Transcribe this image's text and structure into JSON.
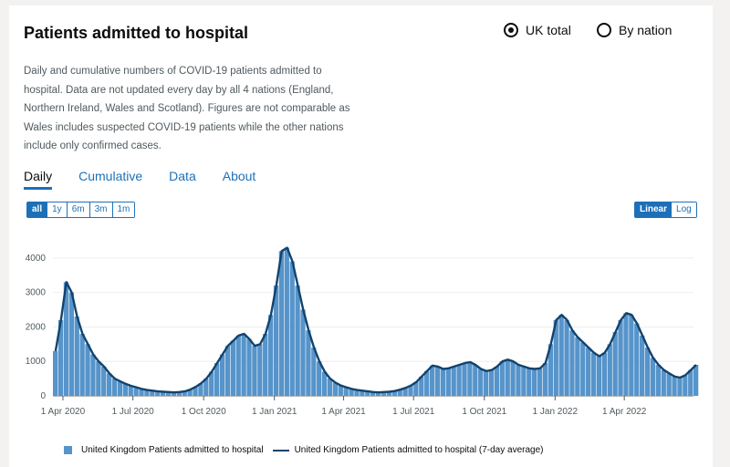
{
  "title": "Patients admitted to hospital",
  "options": [
    {
      "label": "UK total",
      "selected": true
    },
    {
      "label": "By nation",
      "selected": false
    }
  ],
  "description_lines": [
    "Daily and cumulative numbers of COVID-19 patients admitted to",
    "hospital. Data are not updated every day by all 4 nations (England,",
    "Northern Ireland, Wales and Scotland). Figures are not comparable as",
    "Wales includes suspected COVID-19 patients while the other nations",
    "include only confirmed cases."
  ],
  "tabs": [
    {
      "label": "Daily",
      "active": true
    },
    {
      "label": "Cumulative",
      "active": false
    },
    {
      "label": "Data",
      "active": false
    },
    {
      "label": "About",
      "active": false
    }
  ],
  "range_buttons": [
    {
      "label": "all",
      "active": true
    },
    {
      "label": "1y",
      "active": false
    },
    {
      "label": "6m",
      "active": false
    },
    {
      "label": "3m",
      "active": false
    },
    {
      "label": "1m",
      "active": false
    }
  ],
  "scale_buttons": [
    {
      "label": "Linear",
      "active": true
    },
    {
      "label": "Log",
      "active": false
    }
  ],
  "colors": {
    "bar": "#5694ca",
    "line": "#12436d",
    "accent": "#1d70b8"
  },
  "chart_data": {
    "type": "bar",
    "ylim": [
      0,
      4500
    ],
    "yticks": [
      0,
      1000,
      2000,
      3000,
      4000
    ],
    "xlim": [
      "2020-03-19",
      "2022-06-30"
    ],
    "xticks": [
      {
        "date": "2020-04-01",
        "label": "1 Apr 2020"
      },
      {
        "date": "2020-07-01",
        "label": "1 Jul 2020"
      },
      {
        "date": "2020-10-01",
        "label": "1 Oct 2020"
      },
      {
        "date": "2021-01-01",
        "label": "1 Jan 2021"
      },
      {
        "date": "2021-04-01",
        "label": "1 Apr 2021"
      },
      {
        "date": "2021-07-01",
        "label": "1 Jul 2021"
      },
      {
        "date": "2021-10-01",
        "label": "1 Oct 2021"
      },
      {
        "date": "2022-01-01",
        "label": "1 Jan 2022"
      },
      {
        "date": "2022-04-01",
        "label": "1 Apr 2022"
      }
    ],
    "series": [
      {
        "name": "United Kingdom Patients admitted to hospital",
        "type": "bar"
      },
      {
        "name": "United Kingdom Patients admitted to hospital (7-day average)",
        "type": "line"
      }
    ],
    "daily_weekly": [
      {
        "date": "2020-03-19",
        "value": 1300
      },
      {
        "date": "2020-03-26",
        "value": 2200
      },
      {
        "date": "2020-04-02",
        "value": 3300
      },
      {
        "date": "2020-04-09",
        "value": 3000
      },
      {
        "date": "2020-04-16",
        "value": 2300
      },
      {
        "date": "2020-04-23",
        "value": 1800
      },
      {
        "date": "2020-04-30",
        "value": 1500
      },
      {
        "date": "2020-05-07",
        "value": 1200
      },
      {
        "date": "2020-05-14",
        "value": 1000
      },
      {
        "date": "2020-05-21",
        "value": 850
      },
      {
        "date": "2020-05-28",
        "value": 650
      },
      {
        "date": "2020-06-04",
        "value": 500
      },
      {
        "date": "2020-06-11",
        "value": 420
      },
      {
        "date": "2020-06-18",
        "value": 350
      },
      {
        "date": "2020-06-25",
        "value": 290
      },
      {
        "date": "2020-07-02",
        "value": 250
      },
      {
        "date": "2020-07-09",
        "value": 200
      },
      {
        "date": "2020-07-16",
        "value": 170
      },
      {
        "date": "2020-07-23",
        "value": 150
      },
      {
        "date": "2020-07-30",
        "value": 130
      },
      {
        "date": "2020-08-06",
        "value": 120
      },
      {
        "date": "2020-08-13",
        "value": 110
      },
      {
        "date": "2020-08-20",
        "value": 100
      },
      {
        "date": "2020-08-27",
        "value": 110
      },
      {
        "date": "2020-09-03",
        "value": 130
      },
      {
        "date": "2020-09-10",
        "value": 180
      },
      {
        "date": "2020-09-17",
        "value": 260
      },
      {
        "date": "2020-09-24",
        "value": 360
      },
      {
        "date": "2020-10-01",
        "value": 500
      },
      {
        "date": "2020-10-08",
        "value": 700
      },
      {
        "date": "2020-10-15",
        "value": 950
      },
      {
        "date": "2020-10-22",
        "value": 1200
      },
      {
        "date": "2020-10-29",
        "value": 1450
      },
      {
        "date": "2020-11-05",
        "value": 1600
      },
      {
        "date": "2020-11-12",
        "value": 1750
      },
      {
        "date": "2020-11-19",
        "value": 1800
      },
      {
        "date": "2020-11-26",
        "value": 1650
      },
      {
        "date": "2020-12-03",
        "value": 1450
      },
      {
        "date": "2020-12-10",
        "value": 1500
      },
      {
        "date": "2020-12-17",
        "value": 1800
      },
      {
        "date": "2020-12-24",
        "value": 2350
      },
      {
        "date": "2020-12-31",
        "value": 3200
      },
      {
        "date": "2021-01-07",
        "value": 4200
      },
      {
        "date": "2021-01-14",
        "value": 4300
      },
      {
        "date": "2021-01-21",
        "value": 3900
      },
      {
        "date": "2021-01-28",
        "value": 3200
      },
      {
        "date": "2021-02-04",
        "value": 2500
      },
      {
        "date": "2021-02-11",
        "value": 1900
      },
      {
        "date": "2021-02-18",
        "value": 1400
      },
      {
        "date": "2021-02-25",
        "value": 1000
      },
      {
        "date": "2021-03-04",
        "value": 700
      },
      {
        "date": "2021-03-11",
        "value": 500
      },
      {
        "date": "2021-03-18",
        "value": 380
      },
      {
        "date": "2021-03-25",
        "value": 300
      },
      {
        "date": "2021-04-01",
        "value": 250
      },
      {
        "date": "2021-04-08",
        "value": 200
      },
      {
        "date": "2021-04-15",
        "value": 170
      },
      {
        "date": "2021-04-22",
        "value": 150
      },
      {
        "date": "2021-04-29",
        "value": 130
      },
      {
        "date": "2021-05-06",
        "value": 110
      },
      {
        "date": "2021-05-13",
        "value": 100
      },
      {
        "date": "2021-05-20",
        "value": 110
      },
      {
        "date": "2021-05-27",
        "value": 120
      },
      {
        "date": "2021-06-03",
        "value": 140
      },
      {
        "date": "2021-06-10",
        "value": 180
      },
      {
        "date": "2021-06-17",
        "value": 230
      },
      {
        "date": "2021-06-24",
        "value": 300
      },
      {
        "date": "2021-07-01",
        "value": 400
      },
      {
        "date": "2021-07-08",
        "value": 560
      },
      {
        "date": "2021-07-15",
        "value": 720
      },
      {
        "date": "2021-07-22",
        "value": 880
      },
      {
        "date": "2021-07-29",
        "value": 850
      },
      {
        "date": "2021-08-05",
        "value": 780
      },
      {
        "date": "2021-08-12",
        "value": 800
      },
      {
        "date": "2021-08-19",
        "value": 850
      },
      {
        "date": "2021-08-26",
        "value": 900
      },
      {
        "date": "2021-09-02",
        "value": 950
      },
      {
        "date": "2021-09-09",
        "value": 980
      },
      {
        "date": "2021-09-16",
        "value": 900
      },
      {
        "date": "2021-09-23",
        "value": 780
      },
      {
        "date": "2021-09-30",
        "value": 720
      },
      {
        "date": "2021-10-07",
        "value": 750
      },
      {
        "date": "2021-10-14",
        "value": 850
      },
      {
        "date": "2021-10-21",
        "value": 1000
      },
      {
        "date": "2021-10-28",
        "value": 1050
      },
      {
        "date": "2021-11-04",
        "value": 1000
      },
      {
        "date": "2021-11-11",
        "value": 900
      },
      {
        "date": "2021-11-18",
        "value": 850
      },
      {
        "date": "2021-11-25",
        "value": 800
      },
      {
        "date": "2021-12-02",
        "value": 780
      },
      {
        "date": "2021-12-09",
        "value": 800
      },
      {
        "date": "2021-12-16",
        "value": 950
      },
      {
        "date": "2021-12-23",
        "value": 1500
      },
      {
        "date": "2021-12-30",
        "value": 2200
      },
      {
        "date": "2022-01-06",
        "value": 2350
      },
      {
        "date": "2022-01-13",
        "value": 2200
      },
      {
        "date": "2022-01-20",
        "value": 1900
      },
      {
        "date": "2022-01-27",
        "value": 1700
      },
      {
        "date": "2022-02-03",
        "value": 1550
      },
      {
        "date": "2022-02-10",
        "value": 1400
      },
      {
        "date": "2022-02-17",
        "value": 1250
      },
      {
        "date": "2022-02-24",
        "value": 1150
      },
      {
        "date": "2022-03-03",
        "value": 1250
      },
      {
        "date": "2022-03-10",
        "value": 1500
      },
      {
        "date": "2022-03-17",
        "value": 1850
      },
      {
        "date": "2022-03-24",
        "value": 2200
      },
      {
        "date": "2022-03-31",
        "value": 2400
      },
      {
        "date": "2022-04-07",
        "value": 2350
      },
      {
        "date": "2022-04-14",
        "value": 2100
      },
      {
        "date": "2022-04-21",
        "value": 1750
      },
      {
        "date": "2022-04-28",
        "value": 1400
      },
      {
        "date": "2022-05-05",
        "value": 1100
      },
      {
        "date": "2022-05-12",
        "value": 900
      },
      {
        "date": "2022-05-19",
        "value": 750
      },
      {
        "date": "2022-05-26",
        "value": 650
      },
      {
        "date": "2022-06-02",
        "value": 560
      },
      {
        "date": "2022-06-09",
        "value": 530
      },
      {
        "date": "2022-06-16",
        "value": 600
      },
      {
        "date": "2022-06-23",
        "value": 750
      },
      {
        "date": "2022-06-30",
        "value": 900
      }
    ]
  }
}
